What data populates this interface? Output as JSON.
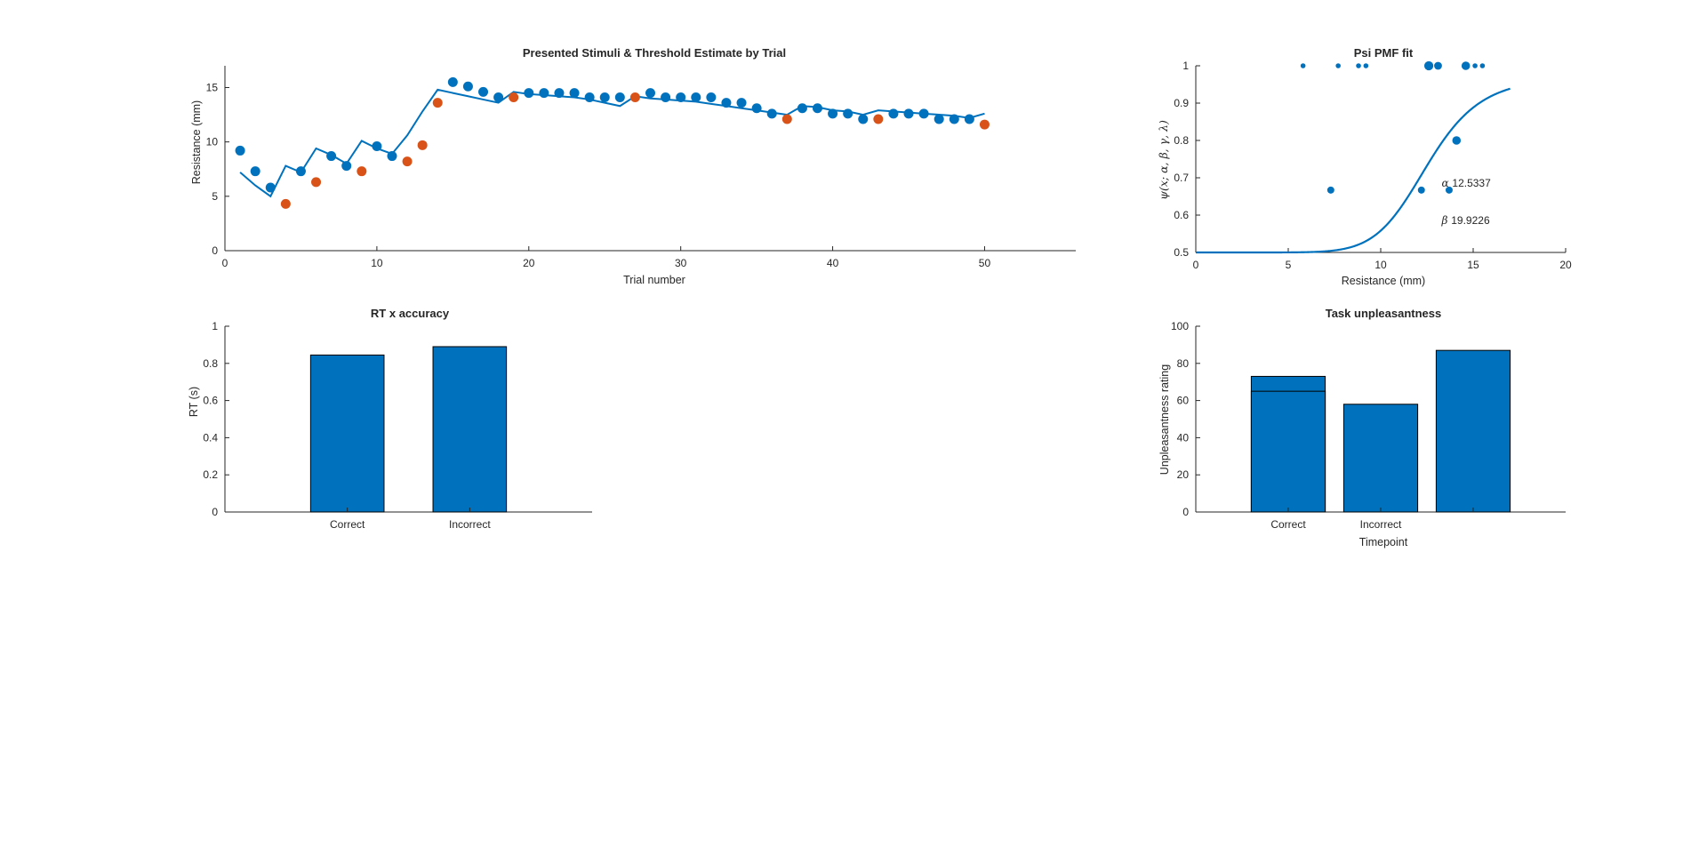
{
  "colors": {
    "blue": "#0072BD",
    "orange": "#D95319",
    "axis": "#262626",
    "bar_edge": "#000000"
  },
  "chart_data": [
    {
      "id": "threshold",
      "type": "scatter",
      "title": "Presented Stimuli & Threshold Estimate by Trial",
      "xlabel": "Trial number",
      "ylabel": "Resistance (mm)",
      "xlim": [
        0,
        56
      ],
      "ylim": [
        0,
        17
      ],
      "xticks": [
        0,
        10,
        20,
        30,
        40,
        50
      ],
      "yticks": [
        0,
        5,
        10,
        15
      ],
      "correct_trials": {
        "x": [
          1,
          2,
          3,
          5,
          7,
          8,
          10,
          11,
          15,
          16,
          17,
          18,
          20,
          21,
          22,
          23,
          24,
          25,
          26,
          28,
          29,
          30,
          31,
          32,
          33,
          34,
          35,
          36,
          38,
          39,
          40,
          41,
          42,
          44,
          45,
          46,
          47,
          48,
          49
        ],
        "y": [
          9.2,
          7.3,
          5.8,
          7.3,
          8.7,
          7.8,
          9.6,
          8.7,
          15.5,
          15.1,
          14.6,
          14.1,
          14.5,
          14.5,
          14.5,
          14.5,
          14.1,
          14.1,
          14.1,
          14.5,
          14.1,
          14.1,
          14.1,
          14.1,
          13.6,
          13.6,
          13.1,
          12.6,
          13.1,
          13.1,
          12.6,
          12.6,
          12.1,
          12.6,
          12.6,
          12.6,
          12.1,
          12.1,
          12.1
        ]
      },
      "incorrect_trials": {
        "x": [
          4,
          6,
          9,
          12,
          13,
          14,
          19,
          27,
          37,
          43,
          50
        ],
        "y": [
          4.3,
          6.3,
          7.3,
          8.2,
          9.7,
          13.6,
          14.1,
          14.1,
          12.1,
          12.1,
          11.6
        ]
      },
      "threshold_line": {
        "x": [
          1,
          2,
          3,
          4,
          5,
          6,
          7,
          8,
          9,
          10,
          11,
          12,
          13,
          14,
          15,
          16,
          17,
          18,
          19,
          20,
          21,
          22,
          23,
          24,
          25,
          26,
          27,
          28,
          29,
          30,
          31,
          32,
          33,
          34,
          35,
          36,
          37,
          38,
          39,
          40,
          41,
          42,
          43,
          44,
          45,
          46,
          47,
          48,
          49,
          50
        ],
        "y": [
          7.2,
          6.0,
          5.0,
          7.8,
          7.2,
          9.4,
          8.8,
          8.0,
          10.1,
          9.4,
          8.9,
          10.6,
          12.8,
          14.8,
          14.5,
          14.2,
          13.9,
          13.6,
          14.6,
          14.4,
          14.3,
          14.2,
          14.1,
          13.9,
          13.6,
          13.3,
          14.2,
          14.0,
          13.9,
          13.8,
          13.7,
          13.5,
          13.3,
          13.1,
          12.9,
          12.7,
          12.5,
          13.3,
          13.2,
          12.9,
          12.8,
          12.5,
          12.9,
          12.8,
          12.7,
          12.6,
          12.5,
          12.4,
          12.2,
          12.6
        ]
      }
    },
    {
      "id": "psi",
      "type": "line",
      "title": "Psi PMF fit",
      "xlabel": "Resistance (mm)",
      "ylabel": "ψ(x; α, β, γ, λ)",
      "xlim": [
        0,
        20
      ],
      "ylim": [
        0.5,
        1
      ],
      "xticks": [
        0,
        5,
        10,
        15,
        20
      ],
      "yticks": [
        0.5,
        0.6,
        0.7,
        0.8,
        0.9,
        1
      ],
      "ytick_labels": [
        "0.5",
        "0.6",
        "0.7",
        "0.8",
        "0.9",
        "1"
      ],
      "pmf": {
        "alpha": 12.5337,
        "beta": 19.9226,
        "gamma": 0.5,
        "lambda": 0.03,
        "x_range": [
          0,
          17
        ]
      },
      "points": {
        "x": [
          5.8,
          7.7,
          8.8,
          9.2,
          12.2,
          12.6,
          13.1,
          13.7,
          14.1,
          14.6,
          15.1,
          15.5
        ],
        "y": [
          1,
          1,
          1,
          1,
          0.667,
          1,
          1,
          0.667,
          0.8,
          1,
          1,
          1
        ],
        "n": [
          1,
          1,
          1,
          1,
          3,
          6,
          4,
          3,
          5,
          5,
          1,
          1
        ]
      },
      "point_extra": {
        "x": [
          7.3
        ],
        "y": [
          0.667
        ],
        "n": [
          3
        ]
      },
      "annotations": [
        {
          "symbol": "α",
          "value": "12.5337",
          "x": 13.1,
          "y": 0.667
        },
        {
          "symbol": "β",
          "value": "19.9226",
          "x": 13.1,
          "y": 0.567
        }
      ]
    },
    {
      "id": "rt",
      "type": "bar",
      "title": "RT x accuracy",
      "xlabel": "",
      "ylabel": "RT (s)",
      "categories": [
        "Correct",
        "Incorrect"
      ],
      "values": [
        0.845,
        0.89
      ],
      "ylim": [
        0,
        1
      ],
      "yticks": [
        0,
        0.2,
        0.4,
        0.6,
        0.8,
        1
      ],
      "ytick_labels": [
        "0",
        "0.2",
        "0.4",
        "0.6",
        "0.8",
        "1"
      ]
    },
    {
      "id": "unpleasant",
      "type": "bar",
      "title": "Task unpleasantness",
      "xlabel": "Timepoint",
      "ylabel": "Unpleasantness rating",
      "categories": [
        "Correct",
        "Incorrect",
        ""
      ],
      "values": [
        73,
        58,
        87
      ],
      "inner_values": [
        65,
        null,
        null
      ],
      "ylim": [
        0,
        100
      ],
      "yticks": [
        0,
        20,
        40,
        60,
        80,
        100
      ]
    }
  ]
}
